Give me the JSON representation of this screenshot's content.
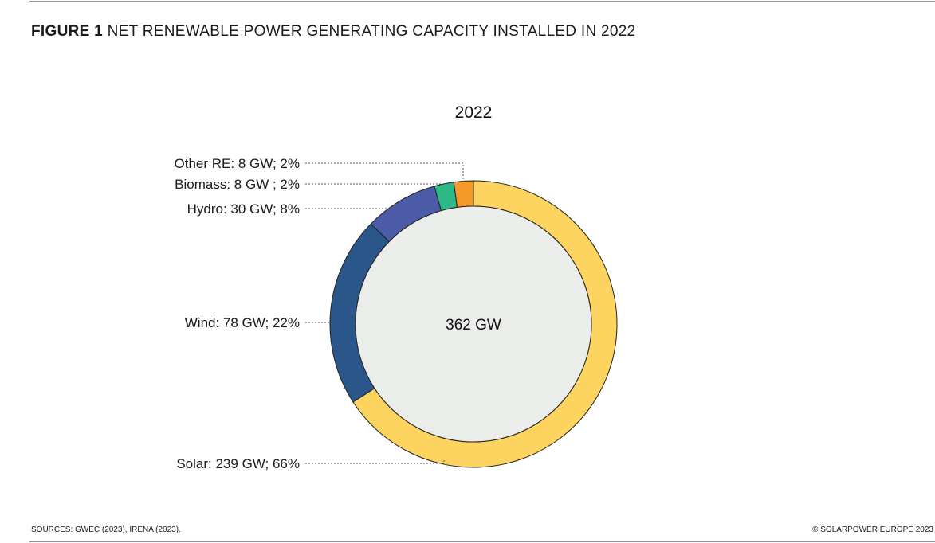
{
  "figure_label": "FIGURE 1",
  "title": "NET RENEWABLE POWER GENERATING CAPACITY INSTALLED IN 2022",
  "sources": "SOURCES: GWEC (2023), IRENA (2023).",
  "copyright": "© SOLARPOWER EUROPE 2023",
  "chart_data": {
    "type": "pie",
    "subtype": "donut",
    "title": "2022",
    "center_label": "362 GW",
    "slices": [
      {
        "name": "Solar",
        "value": 239,
        "percent": 66,
        "label": "Solar: 239 GW; 66%",
        "color": "#FDD460"
      },
      {
        "name": "Wind",
        "value": 78,
        "percent": 22,
        "label": "Wind: 78 GW; 22%",
        "color": "#2A5689"
      },
      {
        "name": "Hydro",
        "value": 30,
        "percent": 8,
        "label": "Hydro: 30 GW; 8%",
        "color": "#4C5BA8"
      },
      {
        "name": "Biomass",
        "value": 8,
        "percent": 2,
        "label": "Biomass: 8 GW ; 2%",
        "color": "#2DB887"
      },
      {
        "name": "Other RE",
        "value": 8,
        "percent": 2,
        "label": "Other RE: 8 GW; 2%",
        "color": "#F59A2A"
      }
    ],
    "inner_color": "#EBEDEA",
    "start": "top",
    "direction": "clockwise"
  }
}
